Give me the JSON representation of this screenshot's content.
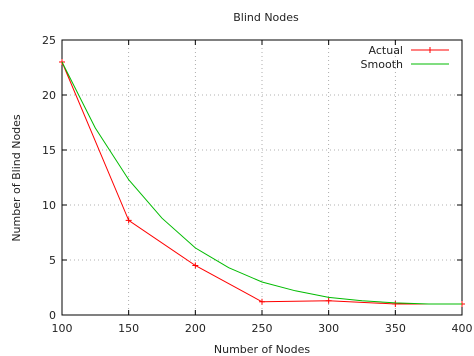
{
  "chart_data": {
    "type": "line",
    "title": "Blind Nodes",
    "xlabel": "Number of Nodes",
    "ylabel": "Number of Blind Nodes",
    "xlim": [
      100,
      400
    ],
    "ylim": [
      0,
      25
    ],
    "xticks": [
      100,
      150,
      200,
      250,
      300,
      350,
      400
    ],
    "yticks": [
      0,
      5,
      10,
      15,
      20,
      25
    ],
    "grid": true,
    "legend_position": "top-right",
    "series": [
      {
        "name": "Actual",
        "color": "#ff0000",
        "marker": "plus",
        "x": [
          100,
          150,
          200,
          250,
          300,
          350,
          400
        ],
        "y": [
          23,
          8.6,
          4.5,
          1.2,
          1.3,
          1.0,
          1.0
        ]
      },
      {
        "name": "Smooth",
        "color": "#00bb00",
        "marker": "none",
        "x": [
          100,
          125,
          150,
          175,
          200,
          225,
          250,
          275,
          300,
          325,
          350,
          375,
          400
        ],
        "y": [
          23,
          17.0,
          12.3,
          8.8,
          6.1,
          4.3,
          3.0,
          2.2,
          1.6,
          1.3,
          1.1,
          1.0,
          1.0
        ]
      }
    ]
  }
}
